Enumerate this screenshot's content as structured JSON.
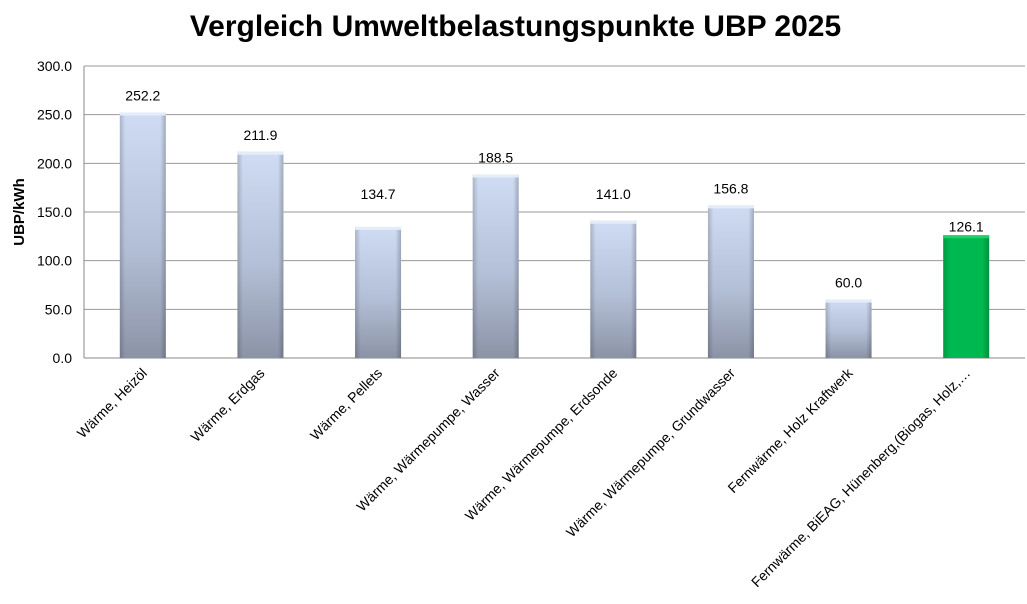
{
  "chart_data": {
    "type": "bar",
    "title": "Vergleich Umweltbelastungspunkte UBP 2025",
    "xlabel": "",
    "ylabel": "UBP/kWh",
    "ylim": [
      0,
      300
    ],
    "yticks": [
      "0.0",
      "50.0",
      "100.0",
      "150.0",
      "200.0",
      "250.0",
      "300.0"
    ],
    "grid": true,
    "categories": [
      "Wärme, Heizöl",
      "Wärme, Erdgas",
      "Wärme, Pellets",
      "Wärme, Wärmepumpe, Wasser",
      "Wärme, Wärmepumpe, Erdsonde",
      "Wärme, Wärmepumpe, Grundwasser",
      "Fernwärme, Holz Kraftwerk",
      "Fernwärme, BiEAG, Hünenberg,(Biogas, Holz,…"
    ],
    "values": [
      252.2,
      211.9,
      134.7,
      188.5,
      141.0,
      156.8,
      60.0,
      126.1
    ],
    "value_labels": [
      "252.2",
      "211.9",
      "134.7",
      "188.5",
      "141.0",
      "156.8",
      "60.0",
      "126.1"
    ],
    "colors": {
      "default_top": "#c9d8f2",
      "default_bottom": "#8d95a8",
      "highlight": "#00b050",
      "highlight_index": 7
    }
  }
}
